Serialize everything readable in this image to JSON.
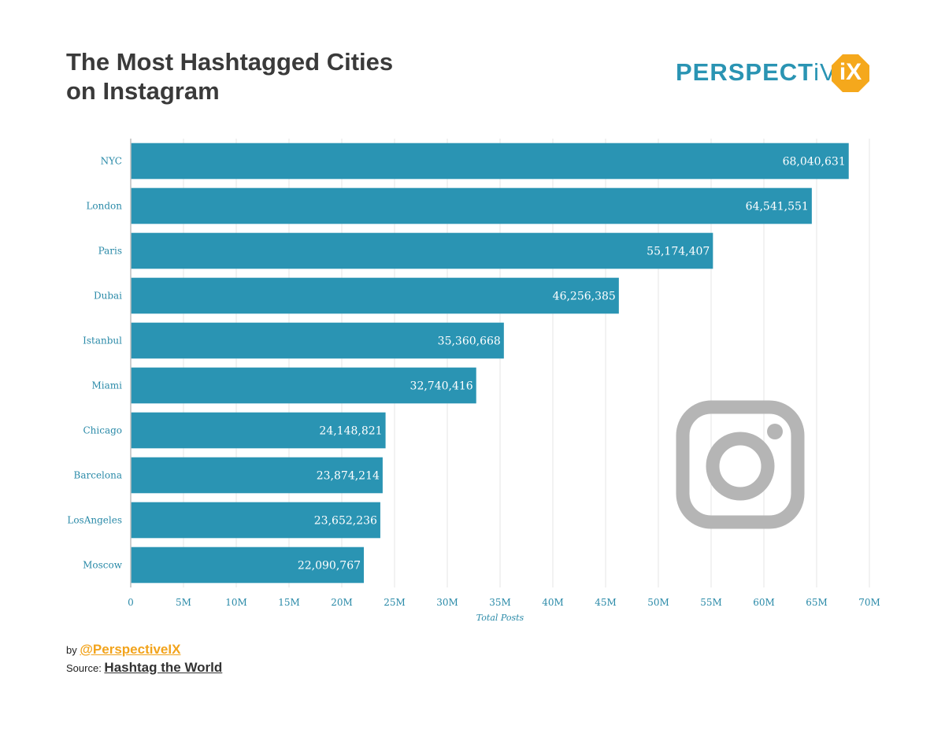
{
  "header": {
    "title_line1": "The Most Hashtagged Cities",
    "title_line2": "on Instagram"
  },
  "logo": {
    "bold_text": "PERSPECT",
    "light_text": "iVE",
    "badge_text": "iX",
    "bold_color": "#2a94b3",
    "badge_color": "#f5a81c"
  },
  "footer": {
    "by_prefix": "by ",
    "handle": "@PerspectiveIX",
    "source_prefix": "Source: ",
    "source_name": "Hashtag the World"
  },
  "colors": {
    "bar": "#2a94b3",
    "axis_text": "#2a8aa8",
    "grid": "#e6e6e6",
    "instagram_icon": "#b5b5b5"
  },
  "chart_data": {
    "type": "bar",
    "orientation": "horizontal",
    "categories": [
      "NYC",
      "London",
      "Paris",
      "Dubai",
      "Istanbul",
      "Miami",
      "Chicago",
      "Barcelona",
      "LosAngeles",
      "Moscow"
    ],
    "values": [
      68040631,
      64541551,
      55174407,
      46256385,
      35360668,
      32740416,
      24148821,
      23874214,
      23652236,
      22090767
    ],
    "value_labels": [
      "68,040,631",
      "64,541,551",
      "55,174,407",
      "46,256,385",
      "35,360,668",
      "32,740,416",
      "24,148,821",
      "23,874,214",
      "23,652,236",
      "22,090,767"
    ],
    "xlabel": "Total Posts",
    "ylabel": "",
    "xlim": [
      0,
      70000000
    ],
    "x_ticks": [
      0,
      5000000,
      10000000,
      15000000,
      20000000,
      25000000,
      30000000,
      35000000,
      40000000,
      45000000,
      50000000,
      55000000,
      60000000,
      65000000,
      70000000
    ],
    "x_tick_labels": [
      "0",
      "5M",
      "10M",
      "15M",
      "20M",
      "25M",
      "30M",
      "35M",
      "40M",
      "45M",
      "50M",
      "55M",
      "60M",
      "65M",
      "70M"
    ],
    "grid": true
  }
}
